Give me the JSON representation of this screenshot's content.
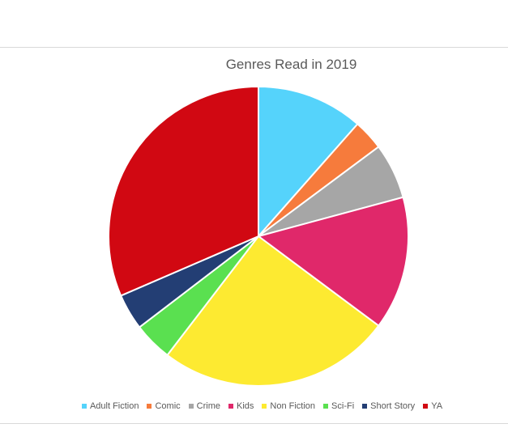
{
  "chart_data": {
    "type": "pie",
    "title": "Genres Read in 2019",
    "start_angle_deg": 0,
    "direction": "clockwise",
    "legend_position": "bottom",
    "slices": [
      {
        "label": "Adult Fiction",
        "value": 11.5,
        "color": "#55d3fb"
      },
      {
        "label": "Comic",
        "value": 3.3,
        "color": "#f67b3c"
      },
      {
        "label": "Crime",
        "value": 6.0,
        "color": "#a6a6a6"
      },
      {
        "label": "Kids",
        "value": 14.4,
        "color": "#e0286a"
      },
      {
        "label": "Non Fiction",
        "value": 25.2,
        "color": "#fdea31"
      },
      {
        "label": "Sci-Fi",
        "value": 4.2,
        "color": "#5ae050"
      },
      {
        "label": "Short Story",
        "value": 3.9,
        "color": "#233e74"
      },
      {
        "label": "YA",
        "value": 31.5,
        "color": "#d10812"
      }
    ]
  }
}
